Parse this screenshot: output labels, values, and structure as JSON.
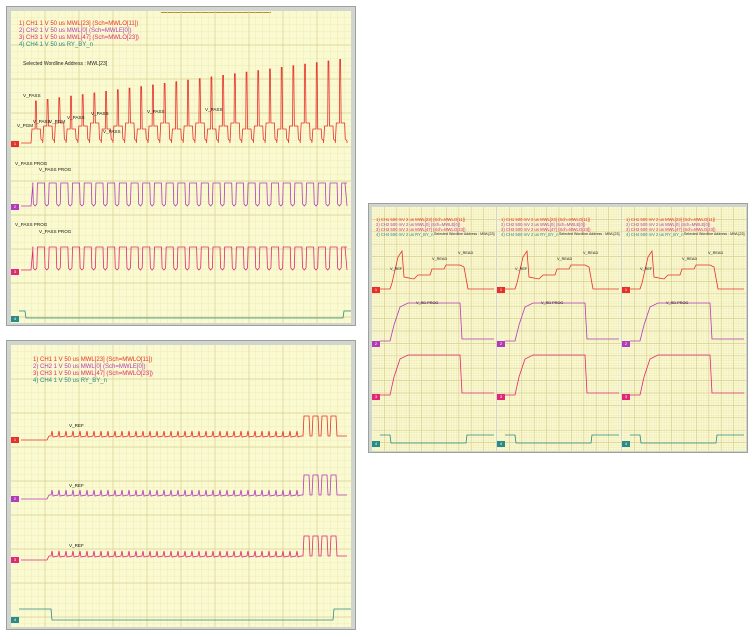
{
  "panels": [
    {
      "channels": [
        {
          "id": "1",
          "label": "1) CH1  1 V    50 us MWL[23] (Sch=MWLO[11])",
          "color": "#e8302a",
          "marker": "1"
        },
        {
          "id": "2",
          "label": "2) CH2  1 V    50 us MWL[0]  (Sch=MWLE[0])",
          "color": "#b23cb8",
          "marker": "2"
        },
        {
          "id": "3",
          "label": "3) CH3  1 V    50 us MWL[47] (Sch=MWLO[23])",
          "color": "#e02874",
          "marker": "3"
        },
        {
          "id": "4",
          "label": "4) CH4  1 V    50 us RY_BY_n",
          "color": "#2a8a86",
          "marker": "4"
        }
      ],
      "address": "Selected Wordline Address : MWL[23]",
      "annotations": [
        "V_PASS",
        "V_PGM",
        "V_PASS",
        "V_PGM",
        "V_PASS",
        "V_PASS",
        "V_PASS",
        "V_PASS",
        "V_PASS",
        "V_PASS PROG",
        "V_PASS PROG",
        "V_PASS PROG",
        "V_PASS PROG"
      ]
    },
    {
      "channels": [
        {
          "id": "1",
          "label": "1) CH1  1 V    50 us MWL[23] (Sch=MWLO[11])",
          "color": "#e8302a",
          "marker": "1"
        },
        {
          "id": "2",
          "label": "2) CH2  1 V    50 us MWL[0]  (Sch=MWLE[0])",
          "color": "#b23cb8",
          "marker": "2"
        },
        {
          "id": "3",
          "label": "3) CH3  1 V    50 us MWL[47] (Sch=MWLO[23])",
          "color": "#e02874",
          "marker": "3"
        },
        {
          "id": "4",
          "label": "4) CH4  1 V    50 us RY_BY_n",
          "color": "#2a8a86",
          "marker": "4"
        }
      ],
      "annotations": [
        "V_REF",
        "V_REF",
        "V_REF"
      ]
    },
    {
      "channels": [
        {
          "id": "1",
          "label": "1) CH1  500 mV   2 us MWL[23] (Sch=MWLO[11])",
          "color": "#e8302a",
          "marker": "1"
        },
        {
          "id": "2",
          "label": "2) CH2  500 mV   2 us MWL[0]  (Sch=MWLE[0])",
          "color": "#b23cb8",
          "marker": "2"
        },
        {
          "id": "3",
          "label": "3) CH3  500 mV   2 us MWL[47] (Sch=MWLO[23])",
          "color": "#e02874",
          "marker": "3"
        },
        {
          "id": "4",
          "label": "4) CH4  500 mV   2 us RY_BY_n",
          "color": "#2a8a86",
          "marker": "4"
        }
      ],
      "address": "Selected Wordline Address : MWL[23]",
      "annotations": [
        "V_REF",
        "V_READ",
        "V_READ",
        "V_RD PROG"
      ]
    },
    {
      "channels": [
        {
          "id": "1",
          "label": "1) CH1  500 mV   2 us MWL[23] (Sch=MWLO[11])",
          "color": "#e8302a",
          "marker": "1"
        },
        {
          "id": "2",
          "label": "2) CH2  500 mV   2 us MWL[0]  (Sch=MWLE[0])",
          "color": "#b23cb8",
          "marker": "2"
        },
        {
          "id": "3",
          "label": "3) CH3  500 mV   2 us MWL[47] (Sch=MWLO[23])",
          "color": "#e02874",
          "marker": "3"
        },
        {
          "id": "4",
          "label": "4) CH4  500 mV   2 us RY_BY_n",
          "color": "#2a8a86",
          "marker": "4"
        }
      ],
      "address": "Selected Wordline Address : MWL[23]",
      "annotations": [
        "V_REF",
        "V_READ",
        "V_READ",
        "V_RD PROG"
      ]
    },
    {
      "channels": [
        {
          "id": "1",
          "label": "1) CH1  500 mV   2 us MWL[23] (Sch=MWLO[11])",
          "color": "#e8302a",
          "marker": "1"
        },
        {
          "id": "2",
          "label": "2) CH2  500 mV   2 us MWL[0]  (Sch=MWLE[0])",
          "color": "#b23cb8",
          "marker": "2"
        },
        {
          "id": "3",
          "label": "3) CH3  500 mV   2 us MWL[47] (Sch=MWLO[23])",
          "color": "#e02874",
          "marker": "3"
        },
        {
          "id": "4",
          "label": "4) CH4  500 mV   2 us RY_BY_n",
          "color": "#2a8a86",
          "marker": "4"
        }
      ],
      "address": "Selected Wordline Address : MWL[23]",
      "annotations": [
        "V_REF",
        "V_READ",
        "V_READ",
        "V_RD PROG"
      ]
    }
  ],
  "chart_data": [
    {
      "type": "line",
      "title": "",
      "xlabel": "",
      "ylabel": "",
      "grid": true,
      "series": [
        {
          "name": "CH1",
          "color": "#e8302a",
          "waveform": "incremental program pulses (V_PGM rising per cycle) with V_PASS steps",
          "pulses": 27
        },
        {
          "name": "CH2",
          "color": "#b23cb8",
          "waveform": "V_PASS PROG square pulses",
          "pulses": 27
        },
        {
          "name": "CH3",
          "color": "#e02874",
          "waveform": "V_PASS PROG square pulses",
          "pulses": 27
        },
        {
          "name": "CH4",
          "color": "#2a8a86",
          "waveform": "RY_BY_n low during operation"
        }
      ]
    },
    {
      "type": "line",
      "title": "",
      "xlabel": "",
      "ylabel": "",
      "grid": true,
      "series": [
        {
          "name": "CH1",
          "color": "#e8302a",
          "waveform": "V_REF level with burst of 4 pulses at end"
        },
        {
          "name": "CH2",
          "color": "#b23cb8",
          "waveform": "V_REF level with burst of 4 pulses at end"
        },
        {
          "name": "CH3",
          "color": "#e02874",
          "waveform": "V_REF level with burst of 4 pulses at end"
        },
        {
          "name": "CH4",
          "color": "#2a8a86",
          "waveform": "RY_BY_n low during operation"
        }
      ]
    },
    {
      "type": "line",
      "title": "",
      "xlabel": "",
      "ylabel": "",
      "grid": true,
      "series": [
        {
          "name": "CH1",
          "color": "#e8302a"
        },
        {
          "name": "CH2",
          "color": "#b23cb8"
        },
        {
          "name": "CH3",
          "color": "#e02874"
        },
        {
          "name": "CH4",
          "color": "#2a8a86"
        }
      ]
    },
    {
      "type": "line",
      "title": "",
      "xlabel": "",
      "ylabel": "",
      "grid": true,
      "series": [
        {
          "name": "CH1",
          "color": "#e8302a"
        },
        {
          "name": "CH2",
          "color": "#b23cb8"
        },
        {
          "name": "CH3",
          "color": "#e02874"
        },
        {
          "name": "CH4",
          "color": "#2a8a86"
        }
      ]
    },
    {
      "type": "line",
      "title": "",
      "xlabel": "",
      "ylabel": "",
      "grid": true,
      "series": [
        {
          "name": "CH1",
          "color": "#e8302a"
        },
        {
          "name": "CH2",
          "color": "#b23cb8"
        },
        {
          "name": "CH3",
          "color": "#e02874"
        },
        {
          "name": "CH4",
          "color": "#2a8a86"
        }
      ]
    }
  ]
}
